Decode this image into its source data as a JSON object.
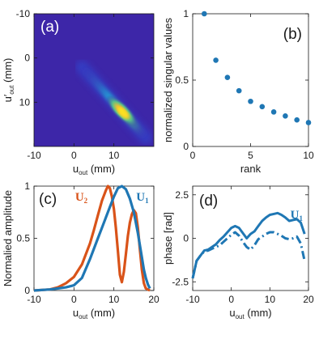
{
  "colors": {
    "blue": "#1f77b4",
    "orange": "#d95319",
    "axis": "#1a1a1a"
  },
  "chart_data": [
    {
      "id": "a",
      "type": "heatmap",
      "panel_label": "(a)",
      "xlabel": "u",
      "xlabel_sub": "out",
      "xlabel_unit": "(mm)",
      "ylabel": "u′",
      "ylabel_sub": "out",
      "ylabel_unit": "(mm)",
      "xlim": [
        -10,
        20
      ],
      "ylim": [
        -10,
        20
      ],
      "y_reversed": true,
      "xticks": [
        "-10",
        "0",
        "10"
      ],
      "xtick_values": [
        -10,
        0,
        10
      ],
      "yticks": [
        "-10",
        "0",
        "10"
      ],
      "ytick_values": [
        -10,
        0,
        10
      ],
      "colormap": "parula",
      "features": {
        "ridge_from": [
          2,
          2
        ],
        "ridge_to": [
          18,
          18
        ],
        "peak": [
          12,
          12
        ]
      }
    },
    {
      "id": "b",
      "type": "scatter",
      "panel_label": "(b)",
      "xlabel": "rank",
      "ylabel": "normalized singular values",
      "xlim": [
        0,
        10
      ],
      "ylim": [
        0,
        1
      ],
      "xticks": [
        "0",
        "5",
        "10"
      ],
      "xtick_values": [
        0,
        5,
        10
      ],
      "yticks": [
        "0",
        "0.5",
        "1"
      ],
      "ytick_values": [
        0,
        0.5,
        1
      ],
      "x": [
        1,
        2,
        3,
        4,
        5,
        6,
        7,
        8,
        9,
        10
      ],
      "y": [
        1.0,
        0.65,
        0.52,
        0.42,
        0.34,
        0.3,
        0.26,
        0.23,
        0.2,
        0.18
      ]
    },
    {
      "id": "c",
      "type": "line",
      "panel_label": "(c)",
      "xlabel": "u",
      "xlabel_sub": "out",
      "xlabel_unit": "(mm)",
      "ylabel": "Normalied amplitude",
      "xlim": [
        -10,
        20
      ],
      "ylim": [
        0,
        1
      ],
      "xticks": [
        "-10",
        "0",
        "10",
        "20"
      ],
      "xtick_values": [
        -10,
        0,
        10,
        20
      ],
      "yticks": [
        "0",
        "0.5",
        "1"
      ],
      "ytick_values": [
        0,
        0.5,
        1
      ],
      "series": [
        {
          "name": "U",
          "name_sub": "2",
          "color": "orange",
          "x": [
            -10,
            -6,
            -4,
            -2,
            0,
            2,
            4,
            5,
            6,
            7,
            8,
            8.5,
            9,
            9.5,
            10,
            10.5,
            11,
            11.5,
            12,
            12.5,
            13,
            13.5,
            14,
            14.5,
            15,
            15.5,
            16,
            16.5,
            17,
            17.5,
            18,
            19
          ],
          "y": [
            0.0,
            0.01,
            0.03,
            0.07,
            0.13,
            0.25,
            0.45,
            0.58,
            0.72,
            0.86,
            0.96,
            1.0,
            0.98,
            0.9,
            0.78,
            0.6,
            0.38,
            0.15,
            0.08,
            0.18,
            0.35,
            0.52,
            0.65,
            0.73,
            0.77,
            0.74,
            0.6,
            0.4,
            0.2,
            0.07,
            0.02,
            0.0
          ]
        },
        {
          "name": "U",
          "name_sub": "1",
          "color": "blue",
          "x": [
            -10,
            -6,
            -4,
            -2,
            0,
            2,
            4,
            6,
            7,
            8,
            9,
            10,
            11,
            12,
            13,
            14,
            15,
            16,
            17,
            17.5,
            18,
            18.5,
            19
          ],
          "y": [
            0.0,
            0.01,
            0.02,
            0.03,
            0.05,
            0.12,
            0.3,
            0.5,
            0.6,
            0.7,
            0.8,
            0.9,
            0.98,
            1.0,
            0.97,
            0.88,
            0.75,
            0.55,
            0.32,
            0.2,
            0.12,
            0.06,
            0.02
          ]
        }
      ]
    },
    {
      "id": "d",
      "type": "line",
      "panel_label": "(d)",
      "xlabel": "u",
      "xlabel_sub": "out",
      "xlabel_unit": "(mm)",
      "ylabel": "phase [rad]",
      "xlim": [
        -10,
        20
      ],
      "ylim": [
        -3,
        3
      ],
      "xticks": [
        "-10",
        "0",
        "10",
        "20"
      ],
      "xtick_values": [
        -10,
        0,
        10,
        20
      ],
      "yticks": [
        "-2.5",
        "0",
        "2.5"
      ],
      "ytick_values": [
        -2.5,
        0,
        2.5
      ],
      "series": [
        {
          "name": "U",
          "name_sub": "1",
          "color": "blue",
          "style": "solid",
          "x": [
            -10,
            -9,
            -8,
            -7,
            -6,
            -5,
            -4,
            -3,
            -2,
            -1,
            0,
            1,
            2,
            3,
            4,
            5,
            6,
            7,
            8,
            9,
            10,
            11,
            12,
            13,
            14,
            15,
            16,
            17,
            18,
            19
          ],
          "y": [
            -2.3,
            -1.3,
            -1.0,
            -0.7,
            -0.65,
            -0.5,
            -0.35,
            -0.1,
            0.1,
            0.35,
            0.6,
            0.7,
            0.6,
            0.3,
            0.0,
            0.25,
            0.4,
            0.7,
            1.0,
            1.2,
            1.35,
            1.4,
            1.45,
            1.35,
            1.2,
            1.0,
            1.05,
            1.1,
            0.9,
            0.25
          ]
        },
        {
          "name": "",
          "color": "blue",
          "style": "dashdot",
          "x": [
            -10,
            -9,
            -8,
            -7,
            -6,
            -5,
            -4,
            -3,
            -2,
            -1,
            0,
            1,
            2,
            3,
            4,
            5,
            6,
            7,
            8,
            9,
            10,
            11,
            12,
            13,
            14,
            15,
            16,
            17,
            18,
            19
          ],
          "y": [
            -2.3,
            -1.3,
            -1.0,
            -0.75,
            -0.7,
            -0.6,
            -0.5,
            -0.4,
            -0.2,
            0.0,
            0.2,
            0.35,
            0.15,
            -0.2,
            -0.5,
            -0.65,
            -0.4,
            -0.05,
            0.1,
            0.25,
            0.35,
            0.35,
            0.25,
            0.15,
            0.0,
            -0.05,
            0.0,
            0.1,
            -0.3,
            -1.3
          ]
        }
      ]
    }
  ]
}
